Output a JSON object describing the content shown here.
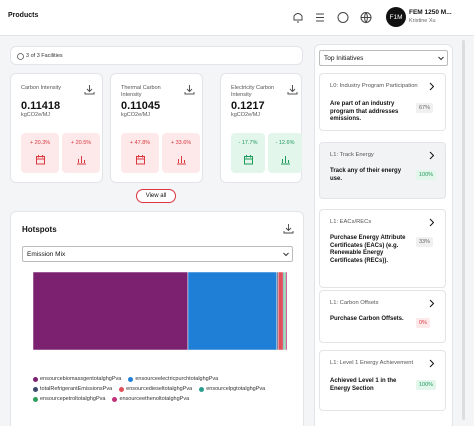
{
  "header": {
    "title": "Products",
    "user_name": "FEM 1250 M...",
    "user_subtitle": "Kristine Xu",
    "avatar": "F1M"
  },
  "facilities": "3 of 3 Facilities",
  "metrics": [
    {
      "label": "Carbon Intensity",
      "value": 0.11418,
      "unit": "kgCO2e/MJ",
      "changes": [
        "+ 20.3%",
        "+ 20.5%"
      ],
      "badge_bg": "#fde9e9",
      "badge_color": "#d9363e"
    },
    {
      "label": "Thermal Carbon Intensity",
      "value": 0.11045,
      "unit": "kgCO2e/MJ",
      "changes": [
        "+ 47.8%",
        "+ 33.6%"
      ],
      "badge_bg": "#fde9e9",
      "badge_color": "#d9363e"
    },
    {
      "label": "Electricity Carbon Intensity",
      "value": 0.1217,
      "unit": "kgCO2e/MJ",
      "changes": [
        "- 17.7%",
        "- 12.6%"
      ],
      "badge_bg": "#e2f6ec",
      "badge_color": "#1f9a5b"
    }
  ],
  "view_all": "View all",
  "hotspots": {
    "title": "Hotspots",
    "select": "Emission Mix"
  },
  "chart_data": {
    "type": "stacked-bar",
    "xlim": [
      0,
      100
    ],
    "series": [
      {
        "name": "ensourcebiomassgentotalghgPva",
        "color": "#7b2170",
        "values": [
          61
        ]
      },
      {
        "name": "ensourceelectricpurchtotalghgPva",
        "color": "#1f7fd6",
        "values": [
          35
        ]
      },
      {
        "name": "totalRefrigerantEmissionsPva",
        "color": "#3b4a6b",
        "values": [
          0.5
        ]
      },
      {
        "name": "ensourcedieseltotalghgPva",
        "color": "#e0505a",
        "values": [
          2
        ]
      },
      {
        "name": "ensourcelpgtotalghgPva",
        "color": "#2a9d8f",
        "values": [
          0.5
        ]
      },
      {
        "name": "ensourcepetroltotalghgPva",
        "color": "#2e9e5b",
        "values": [
          0.5
        ]
      },
      {
        "name": "ensourceethenoltotalghgPva",
        "color": "#c2307a",
        "values": [
          0.5
        ]
      }
    ]
  },
  "initiatives": {
    "title": "Top Initiatives",
    "items": [
      {
        "title": "L0: Industry Program Participation",
        "description": "Are part of an industry program that addresses emissions.",
        "percent": "67%",
        "badge_bg": "#f0f0f0",
        "badge_color": "#666666",
        "selected": false
      },
      {
        "title": "L1: Track Energy",
        "description": "Track any of their energy use.",
        "percent": "100%",
        "badge_bg": "#e2f6ec",
        "badge_color": "#1f9a5b",
        "selected": true
      },
      {
        "title": "L1: EACs/RECs",
        "description": "Purchase Energy Attribute Certificates (EACs) (e.g. Renewable Energy Certificates (RECs)).",
        "percent": "33%",
        "badge_bg": "#f0f0f0",
        "badge_color": "#666666",
        "selected": false
      },
      {
        "title": "L1: Carbon Offsets",
        "description": "Purchase Carbon Offsets.",
        "percent": "0%",
        "badge_bg": "#fde9e9",
        "badge_color": "#d9363e",
        "selected": false
      },
      {
        "title": "L1: Level 1 Energy Achievement",
        "description": "Achieved Level 1 in the Energy Section",
        "percent": "100%",
        "badge_bg": "#e2f6ec",
        "badge_color": "#1f9a5b",
        "selected": false
      }
    ]
  }
}
